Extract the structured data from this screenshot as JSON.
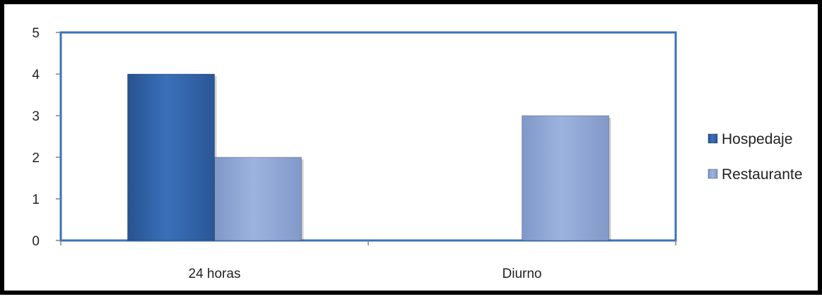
{
  "chart_data": {
    "type": "bar",
    "categories": [
      "24 horas",
      "Diurno"
    ],
    "series": [
      {
        "name": "Hospedaje",
        "values": [
          4,
          0
        ],
        "color": "#2F62A8"
      },
      {
        "name": "Restaurante",
        "values": [
          2,
          3
        ],
        "color": "#8DA6D6"
      }
    ],
    "ylim": [
      0,
      5
    ],
    "yticks": [
      "0",
      "1",
      "2",
      "3",
      "4",
      "5"
    ],
    "grid": false,
    "legend_position": "right",
    "plot_border_color": "#3B72B8"
  }
}
